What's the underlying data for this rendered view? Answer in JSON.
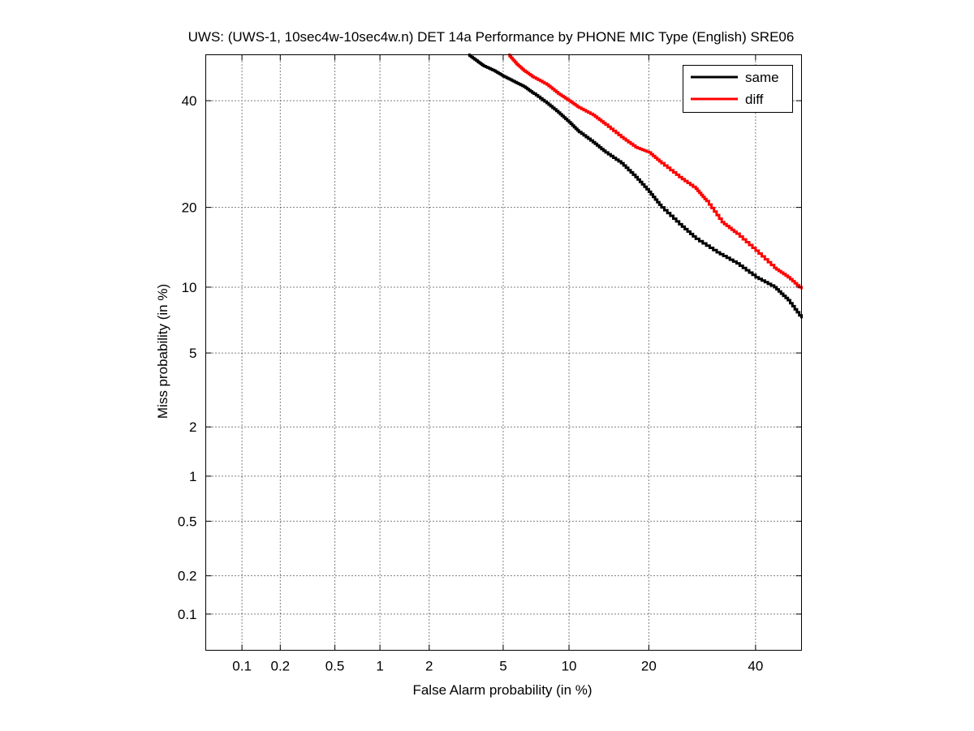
{
  "chart_data": {
    "type": "line",
    "title": "UWS: (UWS-1, 10sec4w-10sec4w.n) DET 14a Performance by PHONE MIC Type (English) SRE06",
    "xlabel": "False Alarm probability (in %)",
    "ylabel": "Miss probability (in %)",
    "x_scale": "probit",
    "y_scale": "probit",
    "xlim": [
      0.05,
      50
    ],
    "ylim": [
      0.05,
      50
    ],
    "x_ticks": [
      0.1,
      0.2,
      0.5,
      1,
      2,
      5,
      10,
      20,
      40
    ],
    "x_tick_labels": [
      "0.1",
      "0.2",
      "0.5",
      "1",
      "2",
      "5",
      "10",
      "20",
      "40"
    ],
    "y_ticks": [
      0.1,
      0.2,
      0.5,
      1,
      2,
      5,
      10,
      20,
      40
    ],
    "y_tick_labels": [
      "0.1",
      "0.2",
      "0.5",
      "1",
      "2",
      "5",
      "10",
      "20",
      "40"
    ],
    "grid": true,
    "legend_position": "top-right",
    "series": [
      {
        "name": "same",
        "color": "#000000",
        "x": [
          3.3,
          3.7,
          4.0,
          4.5,
          5.0,
          5.6,
          6.3,
          7.0,
          8.0,
          9.0,
          10.0,
          11.0,
          12.5,
          14.0,
          16.0,
          18.0,
          20.0,
          22.0,
          25.0,
          28.0,
          32.0,
          36.0,
          40.0,
          44.0,
          47.0,
          50.0
        ],
        "y": [
          50.0,
          48.5,
          47.5,
          46.5,
          45.3,
          44.2,
          43.0,
          41.5,
          39.5,
          37.5,
          35.5,
          33.5,
          31.5,
          29.5,
          27.5,
          25.0,
          22.5,
          20.0,
          17.5,
          15.5,
          13.8,
          12.5,
          11.0,
          10.0,
          8.8,
          7.3
        ]
      },
      {
        "name": "diff",
        "color": "#ff0000",
        "x": [
          5.3,
          5.8,
          6.3,
          7.0,
          8.0,
          9.0,
          10.0,
          11.0,
          12.5,
          14.0,
          16.0,
          18.0,
          20.0,
          22.0,
          25.0,
          28.0,
          30.0,
          33.0,
          36.0,
          40.0,
          44.0,
          47.0,
          50.0
        ],
        "y": [
          50.0,
          48.0,
          46.5,
          45.0,
          43.5,
          41.5,
          40.0,
          38.5,
          37.0,
          35.0,
          32.5,
          30.5,
          29.5,
          27.5,
          25.0,
          23.0,
          21.0,
          17.8,
          16.2,
          14.0,
          12.0,
          11.0,
          9.8
        ]
      }
    ]
  }
}
